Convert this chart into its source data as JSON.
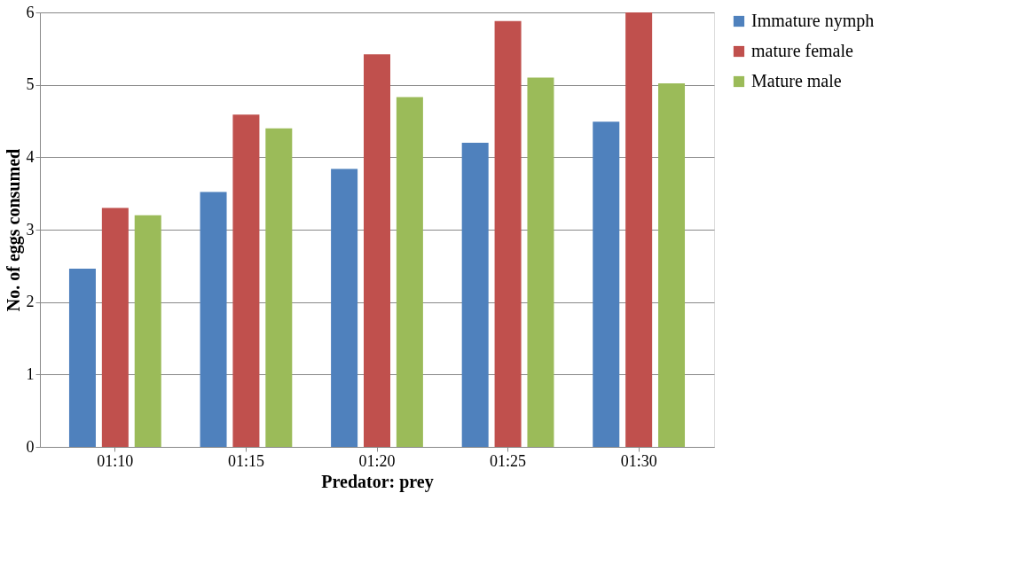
{
  "chart_data": {
    "type": "bar",
    "xlabel": "Predator: prey",
    "ylabel": "No. of eggs consumed",
    "categories": [
      "01:10",
      "01:15",
      "01:20",
      "01:25",
      "01:30"
    ],
    "series": [
      {
        "name": "Immature nymph",
        "color": "#4f81bd",
        "values": [
          2.46,
          3.52,
          3.84,
          4.2,
          4.49
        ]
      },
      {
        "name": "mature female",
        "color": "#c0504d",
        "values": [
          3.3,
          4.59,
          5.42,
          5.88,
          6.0
        ]
      },
      {
        "name": "Mature male",
        "color": "#9bbb59",
        "values": [
          3.2,
          4.4,
          4.83,
          5.1,
          5.02
        ]
      }
    ],
    "ylim": [
      0,
      6
    ],
    "yticks": [
      0,
      1,
      2,
      3,
      4,
      5,
      6
    ],
    "grid": "y",
    "legend": "right"
  }
}
